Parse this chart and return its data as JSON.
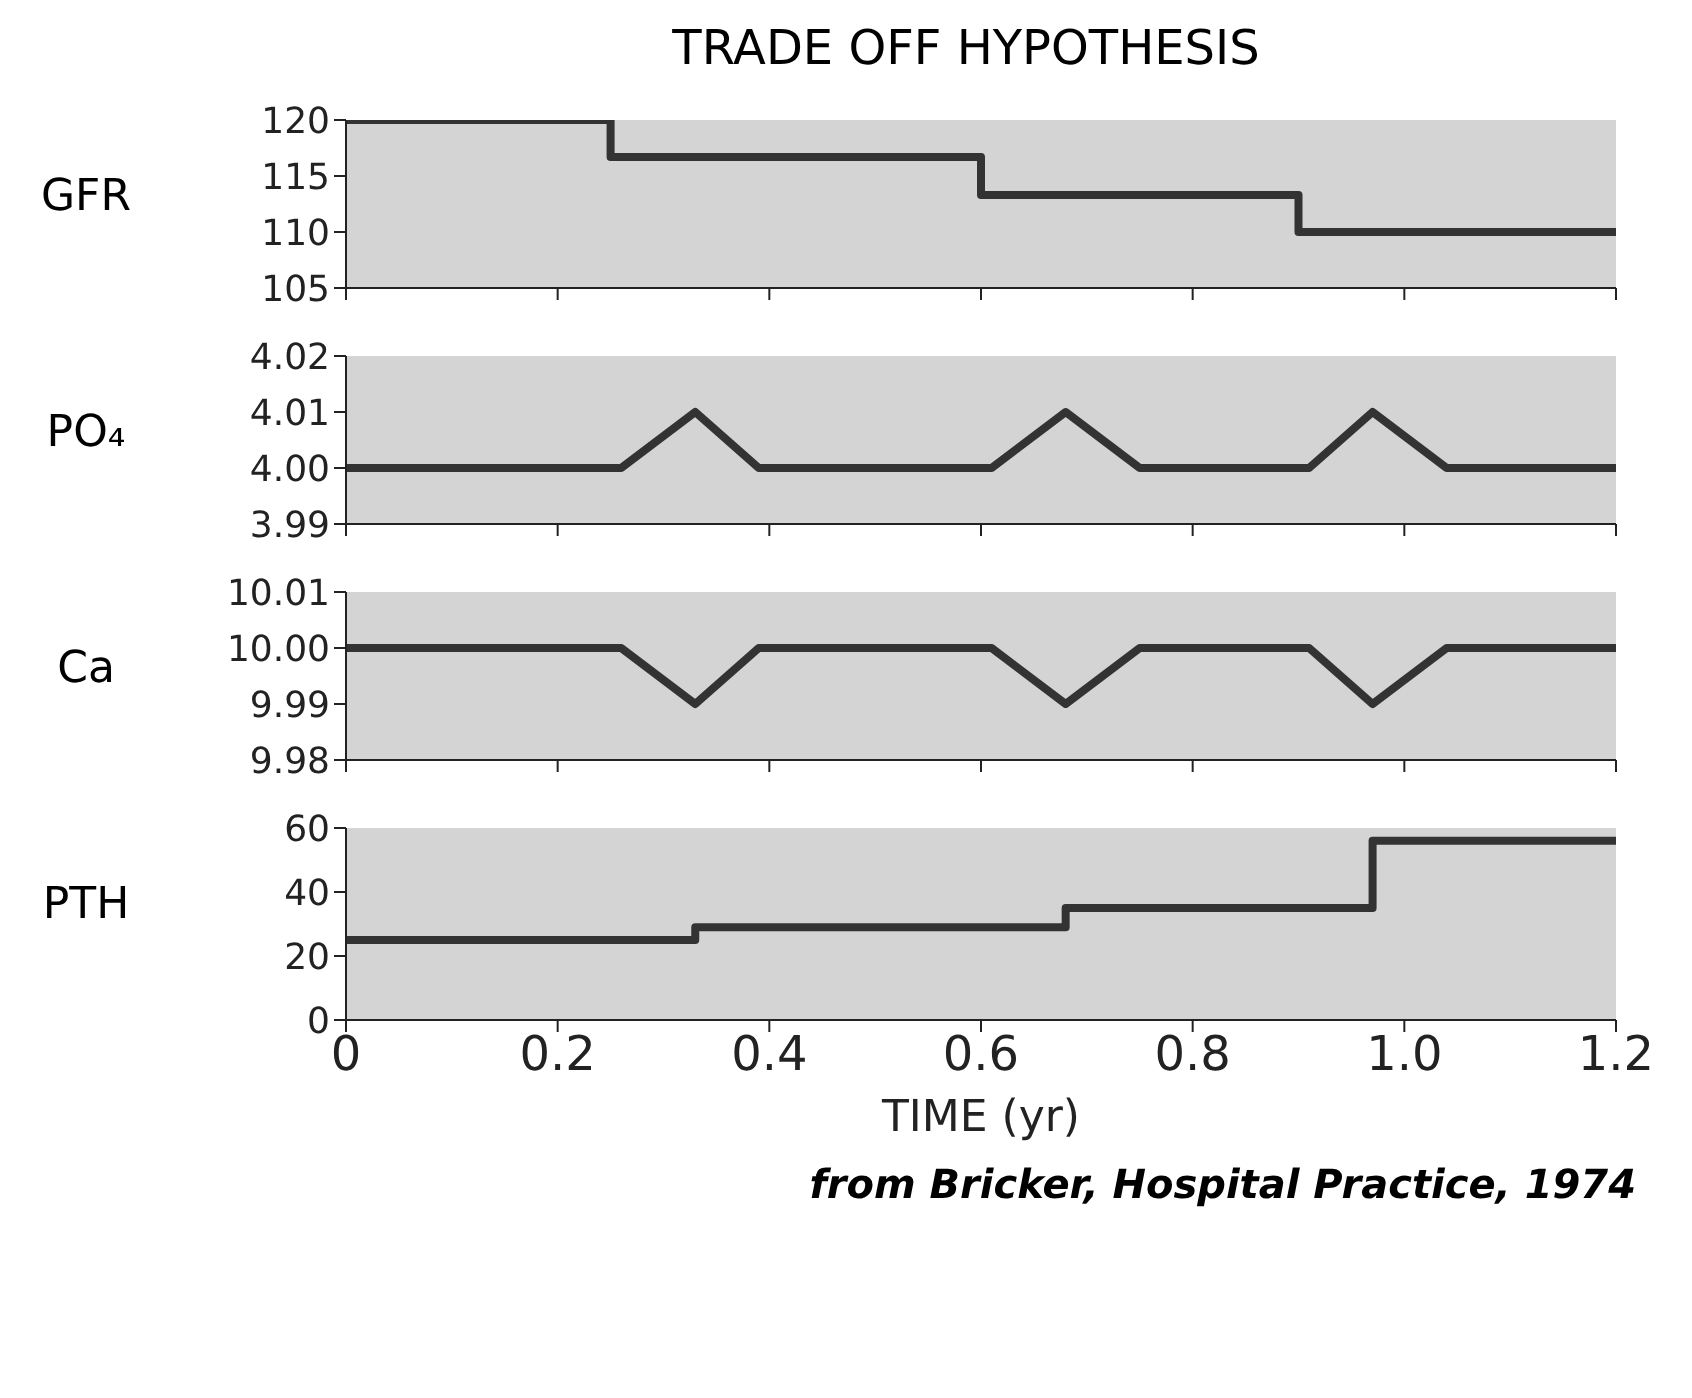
{
  "chart_data": [
    {
      "type": "step",
      "title": "TRADE OFF HYPOTHESIS",
      "ylabel": "GFR",
      "x": [
        0,
        0.25,
        0.6,
        0.9,
        1.2
      ],
      "series": [
        {
          "color": "#333333",
          "values": [
            120,
            116.7,
            113.3,
            110,
            110
          ]
        }
      ],
      "xlim": [
        0,
        1.2
      ],
      "xticks": [
        0,
        0.2,
        0.4,
        0.6,
        0.8,
        1,
        1.2
      ],
      "ylim": [
        105,
        120
      ],
      "yticks": [
        105,
        110,
        115,
        120
      ],
      "tick_labels": "y"
    },
    {
      "type": "line",
      "ylabel": "PO₄",
      "x": [
        0,
        0.26,
        0.33,
        0.39,
        0.61,
        0.68,
        0.75,
        0.91,
        0.97,
        1.04,
        1.2
      ],
      "series": [
        {
          "color": "#333333",
          "values": [
            4,
            4,
            4.01,
            4,
            4,
            4.01,
            4,
            4,
            4.01,
            4,
            4
          ]
        }
      ],
      "xlim": [
        0,
        1.2
      ],
      "xticks": [
        0,
        0.2,
        0.4,
        0.6,
        0.8,
        1,
        1.2
      ],
      "ylim": [
        3.99,
        4.02
      ],
      "yticks": [
        3.99,
        {
          "value": 4,
          "label": "4.00"
        },
        4.01,
        4.02
      ],
      "tick_labels": "y"
    },
    {
      "type": "line",
      "ylabel": "Ca",
      "x": [
        0,
        0.26,
        0.33,
        0.39,
        0.61,
        0.68,
        0.75,
        0.91,
        0.97,
        1.04,
        1.2
      ],
      "series": [
        {
          "color": "#333333",
          "values": [
            10,
            10,
            9.99,
            10,
            10,
            9.99,
            10,
            10,
            9.99,
            10,
            10
          ]
        }
      ],
      "xlim": [
        0,
        1.2
      ],
      "xticks": [
        0,
        0.2,
        0.4,
        0.6,
        0.8,
        1,
        1.2
      ],
      "ylim": [
        9.98,
        10.01
      ],
      "yticks": [
        9.98,
        9.99,
        {
          "value": 10,
          "label": "10.00"
        },
        10.01
      ],
      "tick_labels": "y"
    },
    {
      "type": "step",
      "ylabel": "PTH",
      "xlabel": "TIME (yr)",
      "x": [
        0,
        0.33,
        0.68,
        0.97,
        1.2
      ],
      "series": [
        {
          "color": "#333333",
          "values": [
            25,
            29,
            35,
            56,
            56
          ]
        }
      ],
      "xlim": [
        0,
        1.2
      ],
      "xticks": [
        0,
        0.2,
        0.4,
        0.6,
        0.8,
        {
          "value": 1,
          "label": "1.0"
        },
        1.2
      ],
      "ylim": [
        0,
        60
      ],
      "yticks": [
        0,
        20,
        40,
        60
      ],
      "annotations": [
        "from Bricker, Hospital Practice, 1974"
      ]
    }
  ]
}
